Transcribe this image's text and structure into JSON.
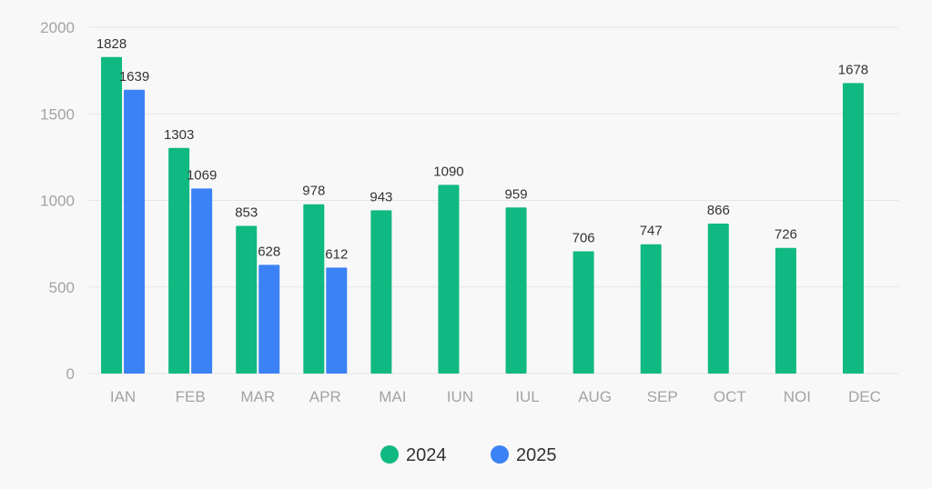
{
  "chart_data": {
    "type": "bar",
    "categories": [
      "IAN",
      "FEB",
      "MAR",
      "APR",
      "MAI",
      "IUN",
      "IUL",
      "AUG",
      "SEP",
      "OCT",
      "NOI",
      "DEC"
    ],
    "series": [
      {
        "name": "2024",
        "color": "#10b981",
        "values": [
          1828,
          1303,
          853,
          978,
          943,
          1090,
          959,
          706,
          747,
          866,
          726,
          1678
        ]
      },
      {
        "name": "2025",
        "color": "#3b82f6",
        "values": [
          1639,
          1069,
          628,
          612,
          null,
          null,
          null,
          null,
          null,
          null,
          null,
          null
        ]
      }
    ],
    "yticks": [
      "0",
      "500",
      "1000",
      "1500",
      "2000"
    ],
    "ylim": [
      0,
      2000
    ],
    "grid": true,
    "legend_position": "bottom-center",
    "data_labels": true
  }
}
